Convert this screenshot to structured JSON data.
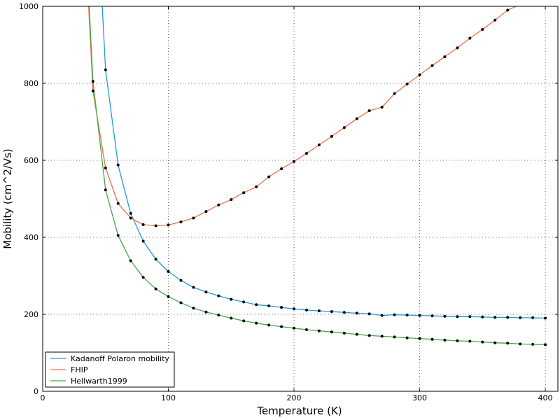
{
  "chart_data": {
    "type": "line",
    "title": "",
    "xlabel": "Temperature (K)",
    "ylabel": "Mobility (cm^2/Vs)",
    "xlim": [
      0,
      410
    ],
    "ylim": [
      0,
      1000
    ],
    "xticks": [
      0,
      100,
      200,
      300,
      400
    ],
    "yticks": [
      0,
      200,
      400,
      600,
      800,
      1000
    ],
    "grid": true,
    "grid_style": "dotted",
    "legend_position": "lower-left",
    "markers": "black dots on sampled points",
    "series": [
      {
        "name": "Kadanoff Polaron mobility",
        "color": "#1f9bd9",
        "x": [
          45,
          50,
          60,
          70,
          80,
          90,
          100,
          110,
          120,
          130,
          140,
          150,
          160,
          170,
          180,
          190,
          200,
          210,
          220,
          230,
          240,
          250,
          260,
          270,
          280,
          290,
          300,
          310,
          320,
          330,
          340,
          350,
          360,
          370,
          380,
          390,
          400
        ],
        "y": [
          1150,
          835,
          588,
          462,
          390,
          343,
          311,
          288,
          270,
          258,
          248,
          239,
          232,
          225,
          222,
          218,
          214,
          211,
          209,
          207,
          205,
          203,
          201,
          197,
          199,
          198,
          197,
          196,
          195,
          194,
          194,
          193,
          192,
          192,
          191,
          191,
          190
        ]
      },
      {
        "name": "FHIP",
        "color": "#e8704e",
        "x": [
          35,
          40,
          50,
          60,
          70,
          80,
          90,
          100,
          110,
          120,
          130,
          140,
          150,
          160,
          170,
          180,
          190,
          200,
          210,
          220,
          230,
          240,
          250,
          260,
          270,
          280,
          290,
          300,
          310,
          320,
          330,
          340,
          350,
          360,
          370,
          380
        ],
        "y": [
          1100,
          780,
          580,
          488,
          450,
          433,
          430,
          432,
          440,
          450,
          467,
          484,
          498,
          516,
          531,
          557,
          578,
          597,
          618,
          640,
          662,
          685,
          708,
          729,
          738,
          773,
          798,
          822,
          846,
          869,
          892,
          917,
          940,
          964,
          990,
          1005
        ]
      },
      {
        "name": "Hellwarth1999",
        "color": "#44a649",
        "x": [
          37,
          40,
          50,
          60,
          70,
          80,
          90,
          100,
          110,
          120,
          130,
          140,
          150,
          160,
          170,
          180,
          190,
          200,
          210,
          220,
          230,
          240,
          250,
          260,
          270,
          280,
          290,
          300,
          310,
          320,
          330,
          340,
          350,
          360,
          370,
          380,
          390,
          400
        ],
        "y": [
          1000,
          805,
          523,
          405,
          339,
          296,
          266,
          246,
          230,
          216,
          206,
          198,
          190,
          183,
          177,
          172,
          168,
          164,
          160,
          157,
          154,
          151,
          148,
          145,
          143,
          141,
          139,
          137,
          135,
          133,
          131,
          130,
          128,
          126,
          125,
          123,
          122,
          121
        ]
      }
    ]
  }
}
